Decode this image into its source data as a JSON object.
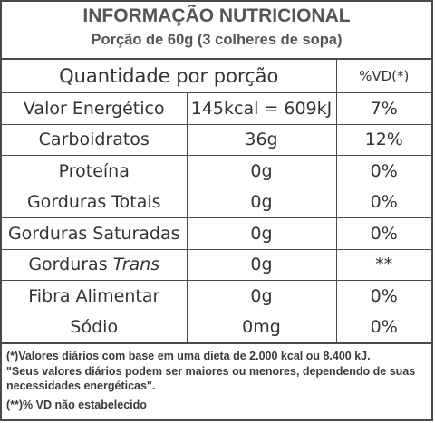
{
  "header": {
    "title": "INFORMAÇÃO NUTRICIONAL",
    "serving": "Porção de 60g  (3 colheres de sopa)"
  },
  "table": {
    "col_header": "Quantidade por porção",
    "vd_header": "%VD(*)",
    "rows": [
      {
        "name": "Valor Energético",
        "amount": "145kcal = 609kJ",
        "vd": "7%"
      },
      {
        "name": "Carboidratos",
        "amount": "36g",
        "vd": "12%"
      },
      {
        "name": "Proteína",
        "amount": "0g",
        "vd": "0%"
      },
      {
        "name": "Gorduras Totais",
        "amount": "0g",
        "vd": "0%"
      },
      {
        "name": "Gorduras Saturadas",
        "amount": "0g",
        "vd": "0%"
      },
      {
        "name_prefix": "Gorduras ",
        "name_italic": "Trans",
        "amount": "0g",
        "vd": "**"
      },
      {
        "name": "Fibra Alimentar",
        "amount": "0g",
        "vd": "0%"
      },
      {
        "name": "Sódio",
        "amount": "0mg",
        "vd": "0%"
      }
    ]
  },
  "footer": {
    "line1": "(*)Valores diários com base em uma dieta de 2.000 kcal ou 8.400 kJ.",
    "line2": "\"Seus valores diários podem ser maiores ou menores, dependendo de suas necessidades energéticas\".",
    "line3": "(**)% VD não estabelecido"
  }
}
